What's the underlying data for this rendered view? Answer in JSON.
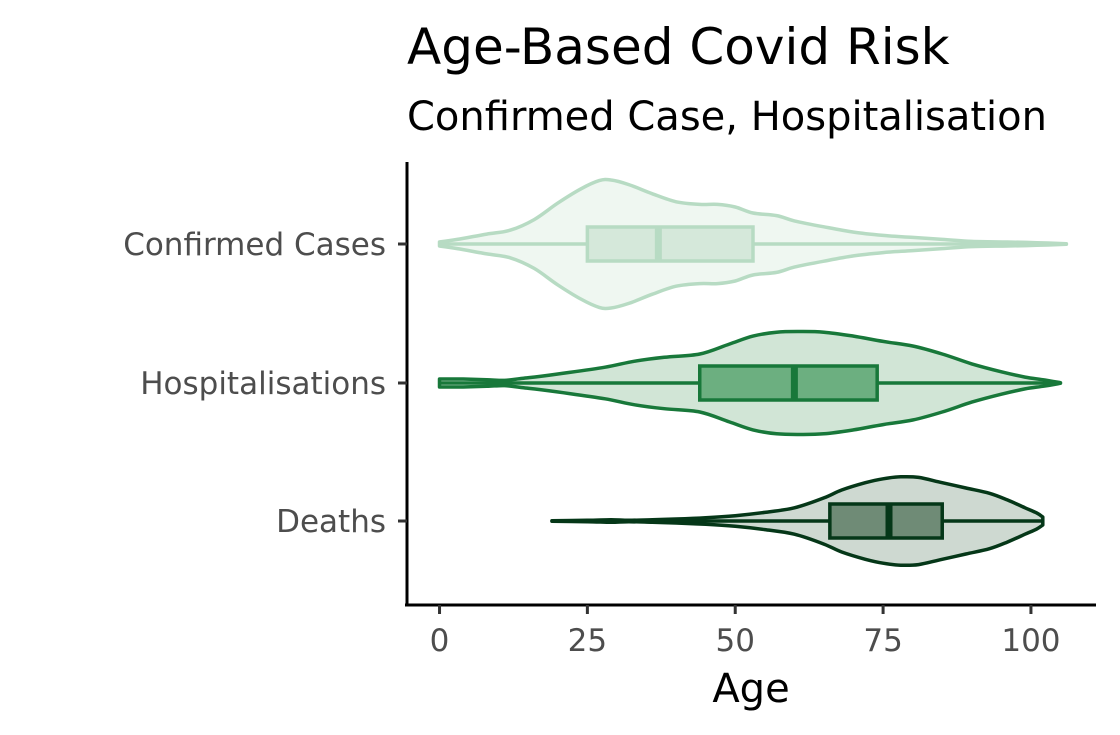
{
  "chart_data": {
    "type": "violin",
    "title": "Age-Based Covid Risk",
    "subtitle": "Confirmed Case, Hospitalisation",
    "xlabel": "Age",
    "ylabel": "",
    "xlim": [
      -5.5,
      111
    ],
    "x_ticks": [
      0,
      25,
      50,
      75,
      100
    ],
    "categories": [
      "Confirmed Cases",
      "Hospitalisations",
      "Deaths"
    ],
    "grid": false,
    "legend": "none",
    "series": [
      {
        "name": "Confirmed Cases",
        "stroke": "#b7dbc3",
        "violin_fill": "#eff7f1",
        "box_fill": "#d5e8da",
        "min": 0,
        "max": 106,
        "q1": 25,
        "median": 37,
        "q3": 53,
        "whisker_low": 0,
        "whisker_high": 106,
        "density": [
          [
            0,
            0.03
          ],
          [
            3,
            0.07
          ],
          [
            8,
            0.15
          ],
          [
            12,
            0.21
          ],
          [
            16,
            0.37
          ],
          [
            20,
            0.62
          ],
          [
            24,
            0.84
          ],
          [
            27,
            0.96
          ],
          [
            29,
            0.97
          ],
          [
            32,
            0.9
          ],
          [
            36,
            0.76
          ],
          [
            40,
            0.64
          ],
          [
            44,
            0.6
          ],
          [
            47,
            0.6
          ],
          [
            50,
            0.56
          ],
          [
            53,
            0.47
          ],
          [
            57,
            0.43
          ],
          [
            60,
            0.35
          ],
          [
            65,
            0.26
          ],
          [
            70,
            0.18
          ],
          [
            75,
            0.13
          ],
          [
            80,
            0.1
          ],
          [
            85,
            0.07
          ],
          [
            90,
            0.04
          ],
          [
            96,
            0.03
          ],
          [
            101,
            0.02
          ],
          [
            106,
            0.005
          ]
        ]
      },
      {
        "name": "Hospitalisations",
        "stroke": "#18783a",
        "violin_fill": "#d1e5d6",
        "box_fill": "#6caf80",
        "min": 0,
        "max": 105,
        "q1": 44,
        "median": 60,
        "q3": 74,
        "whisker_low": 0,
        "whisker_high": 105,
        "density": [
          [
            0,
            0.06
          ],
          [
            4,
            0.06
          ],
          [
            8,
            0.05
          ],
          [
            11,
            0.04
          ],
          [
            14,
            0.07
          ],
          [
            17,
            0.1
          ],
          [
            22,
            0.16
          ],
          [
            28,
            0.24
          ],
          [
            33,
            0.33
          ],
          [
            38,
            0.39
          ],
          [
            44,
            0.44
          ],
          [
            49,
            0.59
          ],
          [
            53,
            0.71
          ],
          [
            57,
            0.77
          ],
          [
            61,
            0.78
          ],
          [
            65,
            0.77
          ],
          [
            70,
            0.71
          ],
          [
            75,
            0.63
          ],
          [
            80,
            0.56
          ],
          [
            85,
            0.44
          ],
          [
            90,
            0.29
          ],
          [
            95,
            0.17
          ],
          [
            99,
            0.09
          ],
          [
            102,
            0.05
          ],
          [
            105,
            0.005
          ]
        ]
      },
      {
        "name": "Deaths",
        "stroke": "#053718",
        "violin_fill": "#ced9d1",
        "box_fill": "#6f8b76",
        "min": 19,
        "max": 102,
        "q1": 66,
        "median": 76,
        "q3": 85,
        "whisker_low": 38,
        "whisker_high": 102,
        "density": [
          [
            19,
            0.005
          ],
          [
            25,
            0.01
          ],
          [
            29,
            0.02
          ],
          [
            32,
            0.01
          ],
          [
            36,
            0.02
          ],
          [
            40,
            0.03
          ],
          [
            45,
            0.05
          ],
          [
            50,
            0.08
          ],
          [
            55,
            0.13
          ],
          [
            60,
            0.2
          ],
          [
            65,
            0.35
          ],
          [
            68,
            0.47
          ],
          [
            72,
            0.58
          ],
          [
            75,
            0.64
          ],
          [
            78,
            0.67
          ],
          [
            81,
            0.66
          ],
          [
            85,
            0.58
          ],
          [
            89,
            0.5
          ],
          [
            93,
            0.42
          ],
          [
            96,
            0.32
          ],
          [
            99,
            0.2
          ],
          [
            101,
            0.12
          ],
          [
            102,
            0.06
          ]
        ]
      }
    ]
  }
}
